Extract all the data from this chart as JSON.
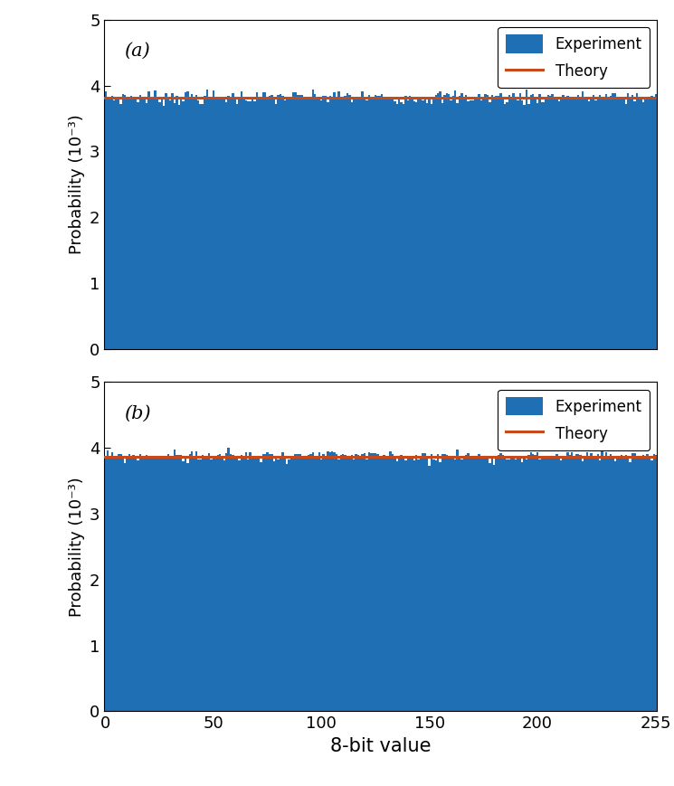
{
  "n_bins": 256,
  "theory_value_a": 0.00382,
  "theory_value_b": 0.00387,
  "bar_color": "#1f6fb5",
  "theory_color": "#c8491a",
  "ylim": [
    0,
    0.005
  ],
  "xlim": [
    0,
    255
  ],
  "yticks": [
    0,
    0.001,
    0.002,
    0.003,
    0.004,
    0.005
  ],
  "ytick_labels": [
    "0",
    "1",
    "2",
    "3",
    "4",
    "5"
  ],
  "xticks": [
    0,
    50,
    100,
    150,
    200,
    255
  ],
  "xlabel": "8-bit value",
  "ylabel": "Probability (10⁻³)",
  "label_a": "(a)",
  "label_b": "(b)",
  "legend_experiment": "Experiment",
  "legend_theory": "Theory",
  "noise_seed_a": 7,
  "noise_seed_b": 99,
  "noise_scale_a": 5.5e-05,
  "noise_scale_b": 4.5e-05,
  "base_value_a": 0.00382,
  "base_value_b": 0.00387
}
